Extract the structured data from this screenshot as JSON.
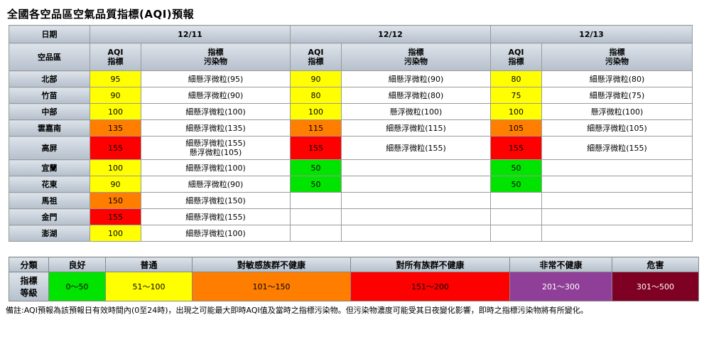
{
  "title": "全國各空品區空氣品質指標(AQI)預報",
  "header": {
    "date_label": "日期",
    "area_label": "空品區",
    "aqi_label": [
      "AQI",
      "指標"
    ],
    "pollutant_label": [
      "指標",
      "污染物"
    ],
    "dates": [
      "12/11",
      "12/12",
      "12/13"
    ]
  },
  "rows": [
    {
      "area": "北部",
      "d1": {
        "aqi": "95",
        "color": "#ffff00",
        "pol": [
          "細懸浮微粒(95)"
        ]
      },
      "d2": {
        "aqi": "90",
        "color": "#ffff00",
        "pol": [
          "細懸浮微粒(90)"
        ]
      },
      "d3": {
        "aqi": "80",
        "color": "#ffff00",
        "pol": [
          "細懸浮微粒(80)"
        ]
      }
    },
    {
      "area": "竹苗",
      "d1": {
        "aqi": "90",
        "color": "#ffff00",
        "pol": [
          "細懸浮微粒(90)"
        ]
      },
      "d2": {
        "aqi": "80",
        "color": "#ffff00",
        "pol": [
          "細懸浮微粒(80)"
        ]
      },
      "d3": {
        "aqi": "75",
        "color": "#ffff00",
        "pol": [
          "細懸浮微粒(75)"
        ]
      }
    },
    {
      "area": "中部",
      "d1": {
        "aqi": "100",
        "color": "#ffff00",
        "pol": [
          "細懸浮微粒(100)"
        ]
      },
      "d2": {
        "aqi": "100",
        "color": "#ffff00",
        "pol": [
          "懸浮微粒(100)"
        ]
      },
      "d3": {
        "aqi": "100",
        "color": "#ffff00",
        "pol": [
          "懸浮微粒(100)"
        ]
      }
    },
    {
      "area": "雲嘉南",
      "d1": {
        "aqi": "135",
        "color": "#ff7e00",
        "pol": [
          "細懸浮微粒(135)"
        ]
      },
      "d2": {
        "aqi": "115",
        "color": "#ff7e00",
        "pol": [
          "細懸浮微粒(115)"
        ]
      },
      "d3": {
        "aqi": "105",
        "color": "#ff7e00",
        "pol": [
          "細懸浮微粒(105)"
        ]
      }
    },
    {
      "area": "高屏",
      "d1": {
        "aqi": "155",
        "color": "#ff0000",
        "pol": [
          "細懸浮微粒(155)",
          "懸浮微粒(105)"
        ]
      },
      "d2": {
        "aqi": "155",
        "color": "#ff0000",
        "pol": [
          "細懸浮微粒(155)"
        ]
      },
      "d3": {
        "aqi": "155",
        "color": "#ff0000",
        "pol": [
          "細懸浮微粒(155)"
        ]
      }
    },
    {
      "area": "宜蘭",
      "d1": {
        "aqi": "100",
        "color": "#ffff00",
        "pol": [
          "細懸浮微粒(100)"
        ]
      },
      "d2": {
        "aqi": "50",
        "color": "#00e400",
        "pol": [
          ""
        ]
      },
      "d3": {
        "aqi": "50",
        "color": "#00e400",
        "pol": [
          ""
        ]
      }
    },
    {
      "area": "花東",
      "d1": {
        "aqi": "90",
        "color": "#ffff00",
        "pol": [
          "細懸浮微粒(90)"
        ]
      },
      "d2": {
        "aqi": "50",
        "color": "#00e400",
        "pol": [
          ""
        ]
      },
      "d3": {
        "aqi": "50",
        "color": "#00e400",
        "pol": [
          ""
        ]
      }
    },
    {
      "area": "馬祖",
      "d1": {
        "aqi": "150",
        "color": "#ff7e00",
        "pol": [
          "細懸浮微粒(150)"
        ]
      },
      "d2": {
        "aqi": "",
        "color": "#ffffff",
        "pol": [
          ""
        ]
      },
      "d3": {
        "aqi": "",
        "color": "#ffffff",
        "pol": [
          ""
        ]
      }
    },
    {
      "area": "金門",
      "d1": {
        "aqi": "155",
        "color": "#ff0000",
        "pol": [
          "細懸浮微粒(155)"
        ]
      },
      "d2": {
        "aqi": "",
        "color": "#ffffff",
        "pol": [
          ""
        ]
      },
      "d3": {
        "aqi": "",
        "color": "#ffffff",
        "pol": [
          ""
        ]
      }
    },
    {
      "area": "澎湖",
      "d1": {
        "aqi": "100",
        "color": "#ffff00",
        "pol": [
          "細懸浮微粒(100)"
        ]
      },
      "d2": {
        "aqi": "",
        "color": "#ffffff",
        "pol": [
          ""
        ]
      },
      "d3": {
        "aqi": "",
        "color": "#ffffff",
        "pol": [
          ""
        ]
      }
    }
  ],
  "legend": {
    "category_label": "分類",
    "index_label": [
      "指標",
      "等級"
    ],
    "levels": [
      {
        "name": "良好",
        "range": "0～50",
        "color": "#00e400",
        "text": "#000000"
      },
      {
        "name": "普通",
        "range": "51～100",
        "color": "#ffff00",
        "text": "#000000"
      },
      {
        "name": "對敏感族群不健康",
        "range": "101～150",
        "color": "#ff7e00",
        "text": "#000000"
      },
      {
        "name": "對所有族群不健康",
        "range": "151～200",
        "color": "#ff0000",
        "text": "#000000"
      },
      {
        "name": "非常不健康",
        "range": "201～300",
        "color": "#8f3f97",
        "text": "#ffffff"
      },
      {
        "name": "危害",
        "range": "301～500",
        "color": "#7e0023",
        "text": "#ffffff"
      }
    ]
  },
  "note": "備註:AQI預報為該預報日有效時間內(0至24時)，出現之可能最大即時AQI值及當時之指標污染物。但污染物濃度可能受其日夜變化影響，即時之指標污染物將有所變化。"
}
